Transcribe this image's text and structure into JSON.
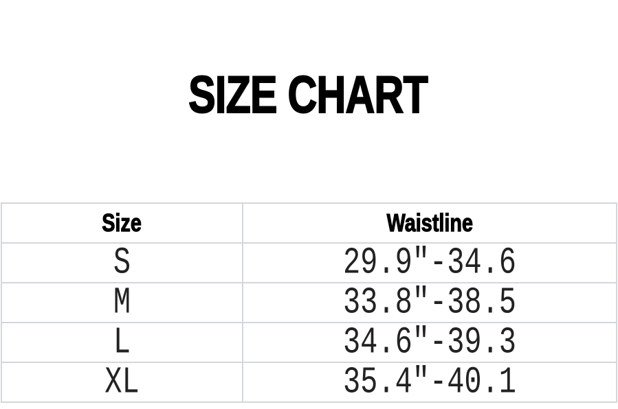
{
  "title": "SIZE CHART",
  "table": {
    "headers": [
      "Size",
      "Waistline"
    ],
    "rows": [
      {
        "size": "S",
        "waistline": "29.9″-34.6"
      },
      {
        "size": "M",
        "waistline": "33.8″-38.5"
      },
      {
        "size": "L",
        "waistline": "34.6″-39.3"
      },
      {
        "size": "XL",
        "waistline": "35.4″-40.1"
      }
    ]
  }
}
